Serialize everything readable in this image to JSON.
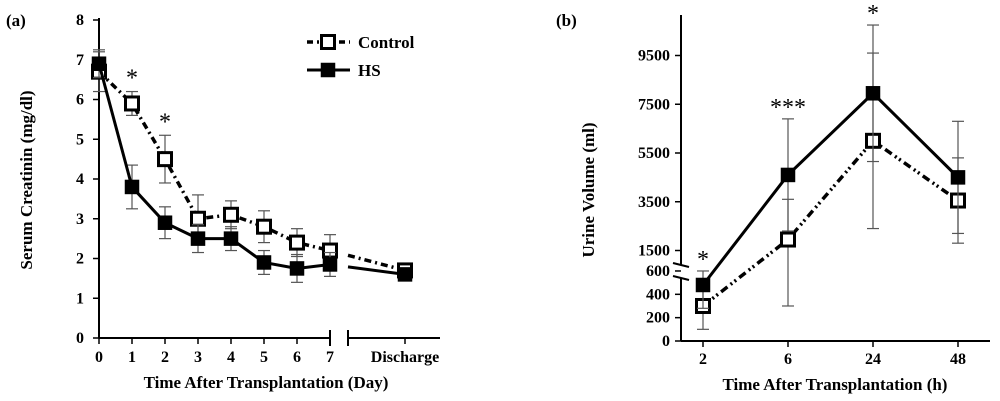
{
  "chart_data": [
    {
      "panel_label": "(a)",
      "type": "line",
      "xlabel": "Time After Transplantation (Day)",
      "ylabel": "Serum Creatinin (mg/dl)",
      "x_tick_labels": [
        "0",
        "1",
        "2",
        "3",
        "4",
        "5",
        "6",
        "7",
        "Discharge"
      ],
      "y_ticks": [
        "0",
        "1",
        "2",
        "3",
        "4",
        "5",
        "6",
        "7",
        "8"
      ],
      "ylim": [
        0,
        8
      ],
      "legend_position": "top-right",
      "series": [
        {
          "name": "Control",
          "marker": "open-square",
          "line_style": "dash-dot",
          "x": [
            "0",
            "1",
            "2",
            "3",
            "4",
            "5",
            "6",
            "7",
            "Discharge"
          ],
          "values": [
            6.7,
            5.9,
            4.5,
            3.0,
            3.1,
            2.8,
            2.4,
            2.2,
            1.7
          ],
          "error": [
            0.5,
            0.3,
            0.6,
            0.6,
            0.35,
            0.4,
            0.35,
            0.4,
            0.15
          ]
        },
        {
          "name": "HS",
          "marker": "filled-square",
          "line_style": "solid",
          "x": [
            "0",
            "1",
            "2",
            "3",
            "4",
            "5",
            "6",
            "7",
            "Discharge"
          ],
          "values": [
            6.9,
            3.8,
            2.9,
            2.5,
            2.5,
            1.9,
            1.75,
            1.85,
            1.6
          ],
          "error": [
            0.35,
            0.55,
            0.4,
            0.35,
            0.3,
            0.3,
            0.35,
            0.3,
            0.15
          ]
        }
      ],
      "significance": [
        {
          "x": "1",
          "label": "*"
        },
        {
          "x": "2",
          "label": "*"
        }
      ]
    },
    {
      "panel_label": "(b)",
      "type": "line",
      "xlabel": "Time After Transplantation (h)",
      "ylabel": "Urine Volume (ml)",
      "x_tick_labels": [
        "2",
        "6",
        "24",
        "48"
      ],
      "y_ticks": [
        "0",
        "200",
        "400",
        "600",
        "1500",
        "3500",
        "5500",
        "7500",
        "9500"
      ],
      "y_axis_break_between": [
        600,
        1500
      ],
      "series": [
        {
          "name": "Control",
          "marker": "open-square",
          "line_style": "dash-dot-dot",
          "x": [
            "2",
            "6",
            "24",
            "48"
          ],
          "values": [
            300,
            1950,
            6000,
            3550
          ],
          "error_low": [
            200,
            1650,
            3600,
            1750
          ],
          "error_high": [
            200,
            1650,
            3600,
            1750
          ]
        },
        {
          "name": "HS",
          "marker": "filled-square",
          "line_style": "solid",
          "x": [
            "2",
            "6",
            "24",
            "48"
          ],
          "values": [
            480,
            4600,
            7950,
            4500
          ],
          "error_low": [
            200,
            2300,
            2800,
            2300
          ],
          "error_high": [
            180,
            2300,
            2800,
            2300
          ]
        }
      ],
      "significance": [
        {
          "x": "2",
          "label": "*"
        },
        {
          "x": "6",
          "label": "***"
        },
        {
          "x": "24",
          "label": "*"
        }
      ]
    }
  ]
}
